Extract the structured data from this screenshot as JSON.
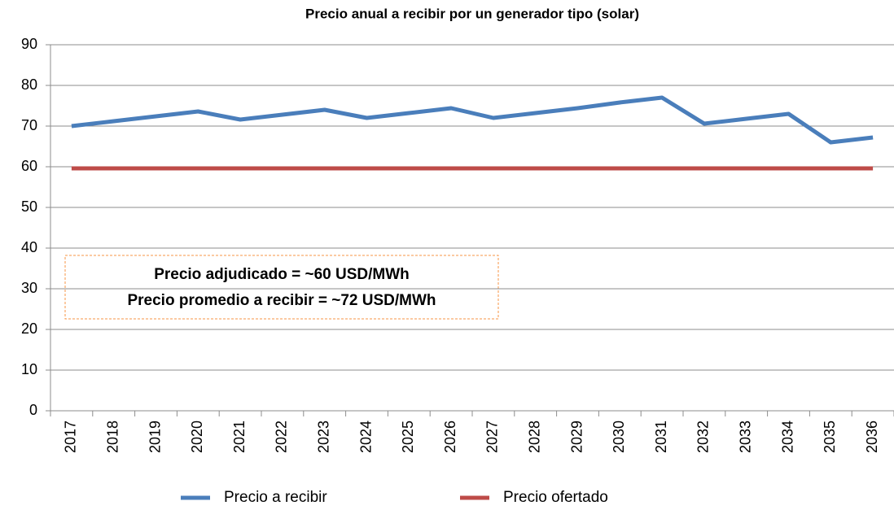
{
  "chart_data": {
    "type": "line",
    "title": "Precio anual a recibir por un generador tipo (solar)",
    "categories": [
      "2017",
      "2018",
      "2019",
      "2020",
      "2021",
      "2022",
      "2023",
      "2024",
      "2025",
      "2026",
      "2027",
      "2028",
      "2029",
      "2030",
      "2031",
      "2032",
      "2033",
      "2034",
      "2035",
      "2036"
    ],
    "series": [
      {
        "name": "Precio a recibir",
        "color": "#4a7ebb",
        "values": [
          70,
          71.2,
          72.4,
          73.6,
          71.6,
          72.8,
          74,
          72,
          73.2,
          74.4,
          72,
          73.2,
          74.4,
          75.8,
          77,
          70.6,
          71.8,
          73,
          66,
          67.2
        ]
      },
      {
        "name": "Precio ofertado",
        "color": "#be4b48",
        "values": [
          59.6,
          59.6,
          59.6,
          59.6,
          59.6,
          59.6,
          59.6,
          59.6,
          59.6,
          59.6,
          59.6,
          59.6,
          59.6,
          59.6,
          59.6,
          59.6,
          59.6,
          59.6,
          59.6,
          59.6
        ]
      }
    ],
    "annotations": [
      "Precio adjudicado = ~60 USD/MWh",
      "Precio promedio a recibir = ~72 USD/MWh"
    ],
    "ylim": [
      0,
      90
    ],
    "yticks": [
      0,
      10,
      20,
      30,
      40,
      50,
      60,
      70,
      80,
      90
    ],
    "grid": true,
    "legend": "bottom"
  }
}
